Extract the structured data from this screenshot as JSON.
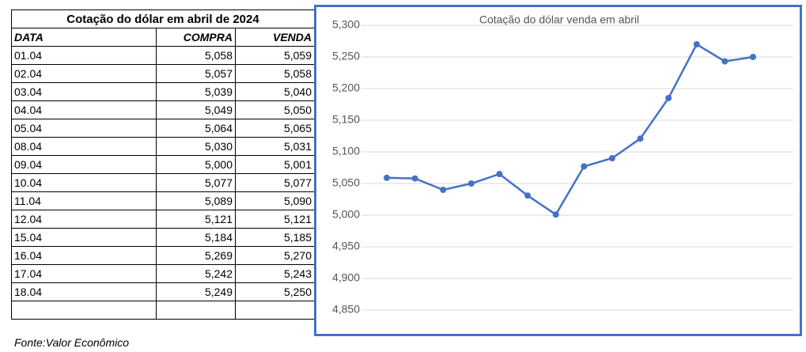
{
  "table": {
    "title": "Cotação do dólar em abril de 2024",
    "columns": [
      "DATA",
      "COMPRA",
      "VENDA"
    ],
    "rows": [
      [
        "01.04",
        "5,058",
        "5,059"
      ],
      [
        "02.04",
        "5,057",
        "5,058"
      ],
      [
        "03.04",
        "5,039",
        "5,040"
      ],
      [
        "04.04",
        "5,049",
        "5,050"
      ],
      [
        "05.04",
        "5,064",
        "5,065"
      ],
      [
        "08.04",
        "5,030",
        "5,031"
      ],
      [
        "09.04",
        "5,000",
        "5,001"
      ],
      [
        "10.04",
        "5,077",
        "5,077"
      ],
      [
        "11.04",
        "5,089",
        "5,090"
      ],
      [
        "12.04",
        "5,121",
        "5,121"
      ],
      [
        "15.04",
        "5,184",
        "5,185"
      ],
      [
        "16.04",
        "5,269",
        "5,270"
      ],
      [
        "17.04",
        "5,242",
        "5,243"
      ],
      [
        "18.04",
        "5,249",
        "5,250"
      ]
    ]
  },
  "source": "Fonte:Valor Econômico",
  "chart_data": {
    "type": "line",
    "title": "Cotação do dólar venda em abril",
    "color": "#4472c4",
    "grid": true,
    "values": [
      5.059,
      5.058,
      5.04,
      5.05,
      5.065,
      5.031,
      5.001,
      5.077,
      5.09,
      5.121,
      5.185,
      5.27,
      5.243,
      5.25
    ],
    "ylim": [
      4.85,
      5.3
    ],
    "yticks": [
      {
        "value": 4.85,
        "label": "4,850"
      },
      {
        "value": 4.9,
        "label": "4,900"
      },
      {
        "value": 4.95,
        "label": "4,950"
      },
      {
        "value": 5.0,
        "label": "5,000"
      },
      {
        "value": 5.05,
        "label": "5,050"
      },
      {
        "value": 5.1,
        "label": "5,100"
      },
      {
        "value": 5.15,
        "label": "5,150"
      },
      {
        "value": 5.2,
        "label": "5,200"
      },
      {
        "value": 5.25,
        "label": "5,250"
      },
      {
        "value": 5.3,
        "label": "5,300"
      }
    ]
  }
}
